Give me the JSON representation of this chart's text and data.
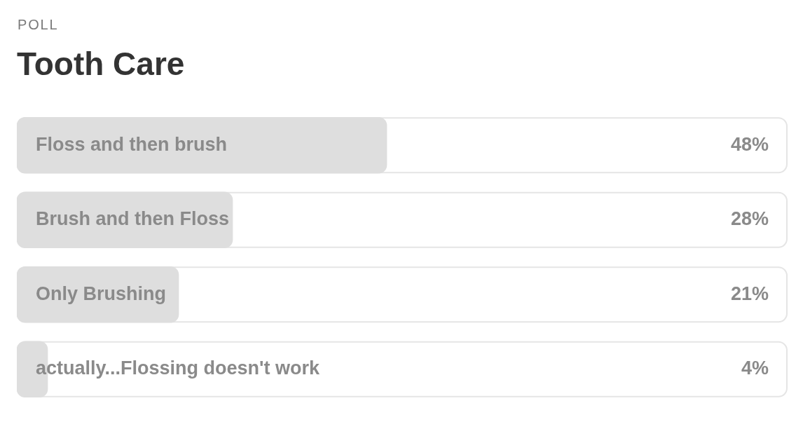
{
  "chart_data": {
    "type": "bar",
    "orientation": "horizontal",
    "subtitle": "POLL",
    "title": "Tooth Care",
    "categories": [
      "Floss and then brush",
      "Brush and then Floss",
      "Only Brushing",
      "actually...Flossing doesn't work"
    ],
    "values": [
      48,
      28,
      21,
      4
    ],
    "color": "#dedede",
    "value_labels": [
      "48%",
      "28%",
      "21%",
      "4%"
    ],
    "xlim": [
      0,
      100
    ],
    "tick_labels": "y"
  }
}
